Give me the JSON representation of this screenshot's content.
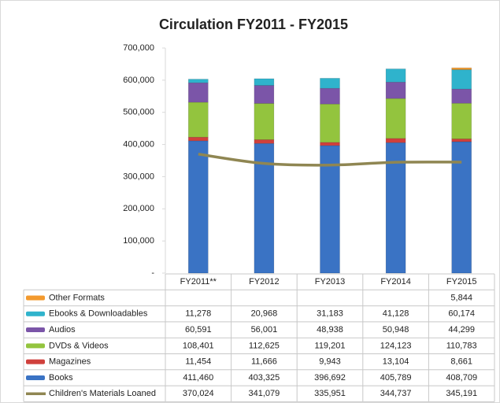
{
  "chart_data": {
    "type": "bar",
    "stacked": true,
    "title": "Circulation FY2011 - FY2015",
    "categories": [
      "FY2011**",
      "FY2012",
      "FY2013",
      "FY2014",
      "FY2015"
    ],
    "ylim": [
      0,
      700000
    ],
    "yticks": [
      {
        "value": 0,
        "label": "-"
      },
      {
        "value": 100000,
        "label": "100,000"
      },
      {
        "value": 200000,
        "label": "200,000"
      },
      {
        "value": 300000,
        "label": "300,000"
      },
      {
        "value": 400000,
        "label": "400,000"
      },
      {
        "value": 500000,
        "label": "500,000"
      },
      {
        "value": 600000,
        "label": "600,000"
      },
      {
        "value": 700000,
        "label": "700,000"
      }
    ],
    "grid": false,
    "series": [
      {
        "name": "Books",
        "color": "#3a73c4",
        "values": [
          411460,
          403325,
          396692,
          405789,
          408709
        ],
        "value_labels": [
          "411,460",
          "403,325",
          "396,692",
          "405,789",
          "408,709"
        ]
      },
      {
        "name": "Magazines",
        "color": "#d0403c",
        "values": [
          11454,
          11666,
          9943,
          13104,
          8661
        ],
        "value_labels": [
          "11,454",
          "11,666",
          "9,943",
          "13,104",
          "8,661"
        ]
      },
      {
        "name": "DVDs & Videos",
        "color": "#93c43e",
        "values": [
          108401,
          112625,
          119201,
          124123,
          110783
        ],
        "value_labels": [
          "108,401",
          "112,625",
          "119,201",
          "124,123",
          "110,783"
        ]
      },
      {
        "name": "Audios",
        "color": "#7b55a8",
        "values": [
          60591,
          56001,
          48938,
          50948,
          44299
        ],
        "value_labels": [
          "60,591",
          "56,001",
          "48,938",
          "50,948",
          "44,299"
        ]
      },
      {
        "name": "Ebooks & Downloadables",
        "color": "#2fb3cc",
        "values": [
          11278,
          20968,
          31183,
          41128,
          60174
        ],
        "value_labels": [
          "11,278",
          "20,968",
          "31,183",
          "41,128",
          "60,174"
        ]
      },
      {
        "name": "Other Formats",
        "color": "#f39a2e",
        "values": [
          null,
          null,
          null,
          null,
          5844
        ],
        "value_labels": [
          null,
          null,
          null,
          null,
          "5,844"
        ]
      },
      {
        "name": "Children's Materials Loaned",
        "type": "line",
        "color": "#8f8652",
        "values": [
          370024,
          341079,
          335951,
          344737,
          345191
        ],
        "value_labels": [
          "370,024",
          "341,079",
          "335,951",
          "344,737",
          "345,191"
        ]
      }
    ]
  }
}
